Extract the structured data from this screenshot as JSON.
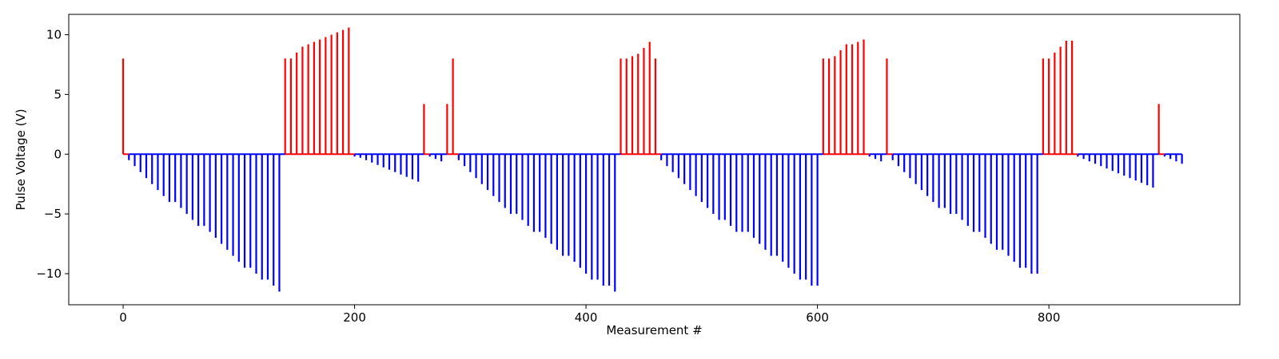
{
  "chart_data": {
    "type": "bar",
    "title": "",
    "xlabel": "Measurement #",
    "ylabel": "Pulse Voltage (V)",
    "xlim": [
      -47,
      965
    ],
    "ylim": [
      -12.6,
      11.7
    ],
    "xticks": [
      0,
      200,
      400,
      600,
      800
    ],
    "yticks": [
      -10,
      -5,
      0,
      5,
      10
    ],
    "grid": false,
    "legend": "none",
    "colors": {
      "positive": "#ff0000",
      "negative": "#0000ff"
    },
    "stems": [
      {
        "x": 0,
        "y": 8.0
      },
      {
        "x": 5,
        "y": -0.5
      },
      {
        "x": 10,
        "y": -1.0
      },
      {
        "x": 15,
        "y": -1.5
      },
      {
        "x": 20,
        "y": -2.0
      },
      {
        "x": 25,
        "y": -2.5
      },
      {
        "x": 30,
        "y": -3.0
      },
      {
        "x": 35,
        "y": -3.5
      },
      {
        "x": 40,
        "y": -4.0
      },
      {
        "x": 45,
        "y": -4.0
      },
      {
        "x": 50,
        "y": -4.5
      },
      {
        "x": 55,
        "y": -5.0
      },
      {
        "x": 60,
        "y": -5.5
      },
      {
        "x": 65,
        "y": -6.0
      },
      {
        "x": 70,
        "y": -6.0
      },
      {
        "x": 75,
        "y": -6.5
      },
      {
        "x": 80,
        "y": -7.0
      },
      {
        "x": 85,
        "y": -7.5
      },
      {
        "x": 90,
        "y": -8.0
      },
      {
        "x": 95,
        "y": -8.5
      },
      {
        "x": 100,
        "y": -9.0
      },
      {
        "x": 105,
        "y": -9.5
      },
      {
        "x": 110,
        "y": -9.5
      },
      {
        "x": 115,
        "y": -10.0
      },
      {
        "x": 120,
        "y": -10.5
      },
      {
        "x": 125,
        "y": -10.5
      },
      {
        "x": 130,
        "y": -11.0
      },
      {
        "x": 135,
        "y": -11.5
      },
      {
        "x": 140,
        "y": 8.0
      },
      {
        "x": 145,
        "y": 8.0
      },
      {
        "x": 150,
        "y": 8.5
      },
      {
        "x": 155,
        "y": 9.0
      },
      {
        "x": 160,
        "y": 9.2
      },
      {
        "x": 165,
        "y": 9.4
      },
      {
        "x": 170,
        "y": 9.6
      },
      {
        "x": 175,
        "y": 9.8
      },
      {
        "x": 180,
        "y": 10.0
      },
      {
        "x": 185,
        "y": 10.2
      },
      {
        "x": 190,
        "y": 10.4
      },
      {
        "x": 195,
        "y": 10.6
      },
      {
        "x": 200,
        "y": -0.2
      },
      {
        "x": 205,
        "y": -0.3
      },
      {
        "x": 210,
        "y": -0.5
      },
      {
        "x": 215,
        "y": -0.7
      },
      {
        "x": 220,
        "y": -0.9
      },
      {
        "x": 225,
        "y": -1.1
      },
      {
        "x": 230,
        "y": -1.3
      },
      {
        "x": 235,
        "y": -1.5
      },
      {
        "x": 240,
        "y": -1.7
      },
      {
        "x": 245,
        "y": -1.9
      },
      {
        "x": 250,
        "y": -2.1
      },
      {
        "x": 255,
        "y": -2.3
      },
      {
        "x": 260,
        "y": 4.2
      },
      {
        "x": 265,
        "y": -0.2
      },
      {
        "x": 270,
        "y": -0.4
      },
      {
        "x": 275,
        "y": -0.6
      },
      {
        "x": 280,
        "y": 4.2
      },
      {
        "x": 285,
        "y": 8.0
      },
      {
        "x": 290,
        "y": -0.5
      },
      {
        "x": 295,
        "y": -1.0
      },
      {
        "x": 300,
        "y": -1.5
      },
      {
        "x": 305,
        "y": -2.0
      },
      {
        "x": 310,
        "y": -2.5
      },
      {
        "x": 315,
        "y": -3.0
      },
      {
        "x": 320,
        "y": -3.5
      },
      {
        "x": 325,
        "y": -4.0
      },
      {
        "x": 330,
        "y": -4.5
      },
      {
        "x": 335,
        "y": -5.0
      },
      {
        "x": 340,
        "y": -5.0
      },
      {
        "x": 345,
        "y": -5.5
      },
      {
        "x": 350,
        "y": -6.0
      },
      {
        "x": 355,
        "y": -6.5
      },
      {
        "x": 360,
        "y": -6.5
      },
      {
        "x": 365,
        "y": -7.0
      },
      {
        "x": 370,
        "y": -7.5
      },
      {
        "x": 375,
        "y": -8.0
      },
      {
        "x": 380,
        "y": -8.5
      },
      {
        "x": 385,
        "y": -8.5
      },
      {
        "x": 390,
        "y": -9.0
      },
      {
        "x": 395,
        "y": -9.5
      },
      {
        "x": 400,
        "y": -10.0
      },
      {
        "x": 405,
        "y": -10.5
      },
      {
        "x": 410,
        "y": -10.5
      },
      {
        "x": 415,
        "y": -11.0
      },
      {
        "x": 420,
        "y": -11.0
      },
      {
        "x": 425,
        "y": -11.5
      },
      {
        "x": 430,
        "y": 8.0
      },
      {
        "x": 435,
        "y": 8.0
      },
      {
        "x": 440,
        "y": 8.2
      },
      {
        "x": 445,
        "y": 8.4
      },
      {
        "x": 450,
        "y": 8.9
      },
      {
        "x": 455,
        "y": 9.4
      },
      {
        "x": 460,
        "y": 8.0
      },
      {
        "x": 465,
        "y": -0.5
      },
      {
        "x": 470,
        "y": -1.0
      },
      {
        "x": 475,
        "y": -1.5
      },
      {
        "x": 480,
        "y": -2.0
      },
      {
        "x": 485,
        "y": -2.5
      },
      {
        "x": 490,
        "y": -3.0
      },
      {
        "x": 495,
        "y": -3.5
      },
      {
        "x": 500,
        "y": -4.0
      },
      {
        "x": 505,
        "y": -4.5
      },
      {
        "x": 510,
        "y": -5.0
      },
      {
        "x": 515,
        "y": -5.5
      },
      {
        "x": 520,
        "y": -5.5
      },
      {
        "x": 525,
        "y": -6.0
      },
      {
        "x": 530,
        "y": -6.5
      },
      {
        "x": 535,
        "y": -6.5
      },
      {
        "x": 540,
        "y": -6.5
      },
      {
        "x": 545,
        "y": -7.0
      },
      {
        "x": 550,
        "y": -7.5
      },
      {
        "x": 555,
        "y": -8.0
      },
      {
        "x": 560,
        "y": -8.5
      },
      {
        "x": 565,
        "y": -8.5
      },
      {
        "x": 570,
        "y": -9.0
      },
      {
        "x": 575,
        "y": -9.5
      },
      {
        "x": 580,
        "y": -10.0
      },
      {
        "x": 585,
        "y": -10.5
      },
      {
        "x": 590,
        "y": -10.5
      },
      {
        "x": 595,
        "y": -11.0
      },
      {
        "x": 600,
        "y": -11.0
      },
      {
        "x": 605,
        "y": 8.0
      },
      {
        "x": 610,
        "y": 8.0
      },
      {
        "x": 615,
        "y": 8.2
      },
      {
        "x": 620,
        "y": 8.7
      },
      {
        "x": 625,
        "y": 9.2
      },
      {
        "x": 630,
        "y": 9.2
      },
      {
        "x": 635,
        "y": 9.4
      },
      {
        "x": 640,
        "y": 9.6
      },
      {
        "x": 645,
        "y": -0.2
      },
      {
        "x": 650,
        "y": -0.4
      },
      {
        "x": 655,
        "y": -0.6
      },
      {
        "x": 660,
        "y": 8.0
      },
      {
        "x": 665,
        "y": -0.5
      },
      {
        "x": 670,
        "y": -1.0
      },
      {
        "x": 675,
        "y": -1.5
      },
      {
        "x": 680,
        "y": -2.0
      },
      {
        "x": 685,
        "y": -2.5
      },
      {
        "x": 690,
        "y": -3.0
      },
      {
        "x": 695,
        "y": -3.5
      },
      {
        "x": 700,
        "y": -4.0
      },
      {
        "x": 705,
        "y": -4.5
      },
      {
        "x": 710,
        "y": -4.5
      },
      {
        "x": 715,
        "y": -5.0
      },
      {
        "x": 720,
        "y": -5.0
      },
      {
        "x": 725,
        "y": -5.5
      },
      {
        "x": 730,
        "y": -6.0
      },
      {
        "x": 735,
        "y": -6.5
      },
      {
        "x": 740,
        "y": -6.5
      },
      {
        "x": 745,
        "y": -7.0
      },
      {
        "x": 750,
        "y": -7.5
      },
      {
        "x": 755,
        "y": -8.0
      },
      {
        "x": 760,
        "y": -8.0
      },
      {
        "x": 765,
        "y": -8.5
      },
      {
        "x": 770,
        "y": -9.0
      },
      {
        "x": 775,
        "y": -9.5
      },
      {
        "x": 780,
        "y": -9.5
      },
      {
        "x": 785,
        "y": -10.0
      },
      {
        "x": 790,
        "y": -10.0
      },
      {
        "x": 795,
        "y": 8.0
      },
      {
        "x": 800,
        "y": 8.0
      },
      {
        "x": 805,
        "y": 8.5
      },
      {
        "x": 810,
        "y": 9.0
      },
      {
        "x": 815,
        "y": 9.5
      },
      {
        "x": 820,
        "y": 9.5
      },
      {
        "x": 825,
        "y": -0.2
      },
      {
        "x": 830,
        "y": -0.4
      },
      {
        "x": 835,
        "y": -0.6
      },
      {
        "x": 840,
        "y": -0.8
      },
      {
        "x": 845,
        "y": -1.0
      },
      {
        "x": 850,
        "y": -1.2
      },
      {
        "x": 855,
        "y": -1.4
      },
      {
        "x": 860,
        "y": -1.6
      },
      {
        "x": 865,
        "y": -1.8
      },
      {
        "x": 870,
        "y": -2.0
      },
      {
        "x": 875,
        "y": -2.2
      },
      {
        "x": 880,
        "y": -2.4
      },
      {
        "x": 885,
        "y": -2.6
      },
      {
        "x": 890,
        "y": -2.8
      },
      {
        "x": 895,
        "y": 4.2
      },
      {
        "x": 900,
        "y": -0.2
      },
      {
        "x": 905,
        "y": -0.4
      },
      {
        "x": 910,
        "y": -0.6
      },
      {
        "x": 915,
        "y": -0.8
      }
    ]
  }
}
